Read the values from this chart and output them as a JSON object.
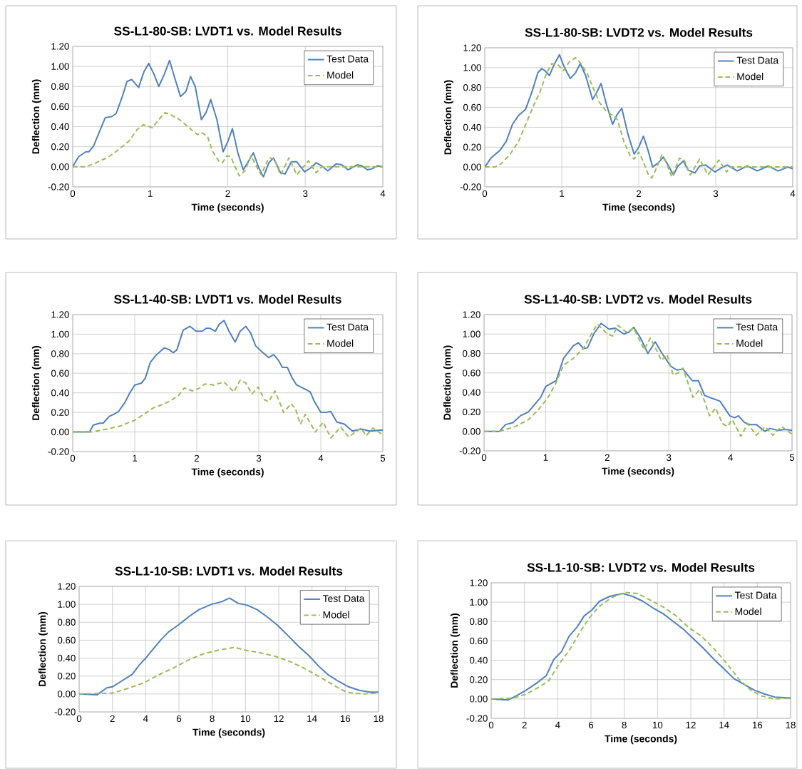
{
  "chart_data": [
    {
      "type": "line",
      "title": "SS-L1-80-SB:  LVDT1 vs. Model Results",
      "xlabel": "Time (seconds)",
      "ylabel": "Deflection (mm)",
      "xlim": [
        0,
        4
      ],
      "ylim": [
        -0.2,
        1.2
      ],
      "xticks": [
        0,
        1,
        2,
        3,
        4
      ],
      "yticks": [
        {
          "value": -0.2,
          "label": "-0.20"
        },
        {
          "value": 0,
          "label": "0.00"
        },
        {
          "value": 0.2,
          "label": "0.20"
        },
        {
          "value": 0.4,
          "label": "0.40"
        },
        {
          "value": 0.6,
          "label": "0.60"
        },
        {
          "value": 0.8,
          "label": "0.80"
        },
        {
          "value": 1.0,
          "label": "1.00"
        },
        {
          "value": 1.2,
          "label": "1.20"
        }
      ],
      "grid": true,
      "legend": "top right",
      "series": [
        {
          "name": "Test Data",
          "color": "#4f81bd",
          "line_style": "solid",
          "x": [
            0,
            0.075,
            0.17,
            0.21,
            0.27,
            0.34,
            0.42,
            0.5,
            0.56,
            0.64,
            0.7,
            0.76,
            0.85,
            0.92,
            0.98,
            1.05,
            1.11,
            1.18,
            1.25,
            1.31,
            1.39,
            1.46,
            1.52,
            1.58,
            1.66,
            1.72,
            1.78,
            1.86,
            1.94,
            2.0,
            2.06,
            2.13,
            2.2,
            2.27,
            2.33,
            2.4,
            2.46,
            2.53,
            2.59,
            2.68,
            2.74,
            2.82,
            2.89,
            2.99,
            3.07,
            3.14,
            3.21,
            3.29,
            3.4,
            3.47,
            3.55,
            3.67,
            3.73,
            3.8,
            3.86,
            3.93,
            4.0
          ],
          "values": [
            0,
            0.1,
            0.15,
            0.15,
            0.21,
            0.34,
            0.49,
            0.5,
            0.53,
            0.7,
            0.85,
            0.87,
            0.79,
            0.95,
            1.03,
            0.92,
            0.8,
            0.92,
            1.06,
            0.9,
            0.7,
            0.75,
            0.9,
            0.8,
            0.47,
            0.54,
            0.67,
            0.47,
            0.15,
            0.25,
            0.38,
            0.14,
            -0.03,
            0.06,
            0.14,
            -0.01,
            -0.1,
            0.04,
            0.09,
            -0.06,
            -0.07,
            0.05,
            0.05,
            -0.05,
            -0.01,
            0.04,
            0.01,
            -0.04,
            0.03,
            0.02,
            -0.03,
            0.02,
            0.01,
            -0.03,
            -0.02,
            0.01,
            0
          ]
        },
        {
          "name": "Model",
          "color": "#9bbb59",
          "line_style": "dashed",
          "x": [
            0,
            0.17,
            0.3,
            0.44,
            0.54,
            0.67,
            0.73,
            0.83,
            0.91,
            1.03,
            1.11,
            1.19,
            1.26,
            1.36,
            1.44,
            1.53,
            1.61,
            1.67,
            1.74,
            1.8,
            1.89,
            1.93,
            1.99,
            2.04,
            2.1,
            2.15,
            2.22,
            2.3,
            2.38,
            2.43,
            2.53,
            2.6,
            2.68,
            2.79,
            2.89,
            3.04,
            3.14,
            3.21,
            4.0
          ],
          "values": [
            0,
            0,
            0.04,
            0.09,
            0.14,
            0.22,
            0.26,
            0.37,
            0.42,
            0.39,
            0.47,
            0.54,
            0.52,
            0.48,
            0.43,
            0.37,
            0.32,
            0.34,
            0.3,
            0.16,
            0.05,
            0.04,
            0.11,
            0.1,
            -0.01,
            -0.09,
            -0.04,
            0.11,
            -0.01,
            -0.08,
            0.09,
            0.08,
            -0.08,
            0.09,
            -0.08,
            0.06,
            -0.06,
            0,
            0
          ]
        }
      ]
    },
    {
      "type": "line",
      "title": "SS-L1-80-SB:  LVDT2 vs. Model Results",
      "xlabel": "Time (seconds)",
      "ylabel": "Deflection (mm)",
      "xlim": [
        0,
        4
      ],
      "ylim": [
        -0.2,
        1.2
      ],
      "xticks": [
        0,
        1,
        2,
        3,
        4
      ],
      "yticks": [
        {
          "value": -0.2,
          "label": "-0.20"
        },
        {
          "value": 0,
          "label": "0.00"
        },
        {
          "value": 0.2,
          "label": "0.20"
        },
        {
          "value": 0.4,
          "label": "0.40"
        },
        {
          "value": 0.6,
          "label": "0.60"
        },
        {
          "value": 0.8,
          "label": "0.80"
        },
        {
          "value": 1.0,
          "label": "1.00"
        },
        {
          "value": 1.2,
          "label": "1.20"
        }
      ],
      "grid": true,
      "legend": "top right",
      "series": [
        {
          "name": "Test Data",
          "color": "#4f81bd",
          "line_style": "solid",
          "x": [
            0,
            0.08,
            0.2,
            0.28,
            0.36,
            0.44,
            0.53,
            0.61,
            0.69,
            0.74,
            0.78,
            0.84,
            0.9,
            0.97,
            1.03,
            1.11,
            1.18,
            1.24,
            1.31,
            1.4,
            1.46,
            1.51,
            1.58,
            1.66,
            1.72,
            1.78,
            1.86,
            1.94,
            2.0,
            2.06,
            2.12,
            2.18,
            2.25,
            2.32,
            2.38,
            2.45,
            2.51,
            2.58,
            2.64,
            2.73,
            2.79,
            2.87,
            2.92,
            2.99,
            3.07,
            3.15,
            3.28,
            3.41,
            3.54,
            3.68,
            3.81,
            3.94,
            4.0
          ],
          "values": [
            0,
            0.09,
            0.17,
            0.26,
            0.43,
            0.52,
            0.58,
            0.75,
            0.95,
            0.99,
            0.97,
            0.92,
            1.03,
            1.13,
            1.01,
            0.89,
            0.95,
            1.04,
            0.92,
            0.68,
            0.76,
            0.84,
            0.63,
            0.43,
            0.53,
            0.59,
            0.33,
            0.13,
            0.2,
            0.31,
            0.17,
            0,
            0.04,
            0.1,
            0.02,
            -0.08,
            0.01,
            0.06,
            -0.03,
            -0.06,
            0.01,
            0.02,
            -0.01,
            -0.05,
            -0.01,
            0.02,
            -0.04,
            0.01,
            -0.04,
            0.01,
            -0.04,
            0,
            -0.02
          ]
        },
        {
          "name": "Model",
          "color": "#9bbb59",
          "line_style": "dashed",
          "x": [
            0,
            0.13,
            0.21,
            0.33,
            0.44,
            0.56,
            0.64,
            0.72,
            0.8,
            0.87,
            0.95,
            1.02,
            1.1,
            1.18,
            1.25,
            1.33,
            1.41,
            1.49,
            1.58,
            1.66,
            1.72,
            1.81,
            1.89,
            1.94,
            2.0,
            2.05,
            2.12,
            2.17,
            2.23,
            2.3,
            2.36,
            2.43,
            2.53,
            2.59,
            2.67,
            2.79,
            2.9,
            3.04,
            3.14,
            3.19,
            4.0
          ],
          "values": [
            0,
            0,
            0.03,
            0.13,
            0.26,
            0.48,
            0.63,
            0.76,
            0.94,
            1.04,
            1.03,
            0.97,
            1.06,
            1.1,
            1.04,
            0.94,
            0.79,
            0.65,
            0.56,
            0.52,
            0.48,
            0.25,
            0.11,
            0.08,
            0.15,
            0.07,
            -0.07,
            -0.11,
            -0.01,
            0.12,
            0.04,
            -0.1,
            0.09,
            0.07,
            -0.08,
            0.08,
            -0.08,
            0.07,
            -0.05,
            0,
            0
          ]
        }
      ]
    },
    {
      "type": "line",
      "title": "SS-L1-40-SB:  LVDT1 vs. Model Results",
      "xlabel": "Time (seconds)",
      "ylabel": "Deflection (mm)",
      "xlim": [
        0,
        5
      ],
      "ylim": [
        -0.2,
        1.2
      ],
      "xticks": [
        0,
        1,
        2,
        3,
        4,
        5
      ],
      "yticks": [
        {
          "value": -0.2,
          "label": "-0.20"
        },
        {
          "value": 0,
          "label": "0.00"
        },
        {
          "value": 0.2,
          "label": "0.20"
        },
        {
          "value": 0.4,
          "label": "0.40"
        },
        {
          "value": 0.6,
          "label": "0.60"
        },
        {
          "value": 0.8,
          "label": "0.80"
        },
        {
          "value": 1.0,
          "label": "1.00"
        },
        {
          "value": 1.2,
          "label": "1.20"
        }
      ],
      "grid": true,
      "legend": "top right",
      "series": [
        {
          "name": "Test Data",
          "color": "#4f81bd",
          "line_style": "solid",
          "x": [
            0,
            0.27,
            0.33,
            0.43,
            0.49,
            0.59,
            0.66,
            0.74,
            0.84,
            0.92,
            1.0,
            1.11,
            1.17,
            1.25,
            1.35,
            1.48,
            1.56,
            1.62,
            1.68,
            1.78,
            1.89,
            1.99,
            2.09,
            2.15,
            2.21,
            2.3,
            2.36,
            2.44,
            2.52,
            2.62,
            2.7,
            2.79,
            2.87,
            2.95,
            3.05,
            3.16,
            3.24,
            3.32,
            3.38,
            3.46,
            3.54,
            3.61,
            3.71,
            3.83,
            3.89,
            4.0,
            4.08,
            4.16,
            4.26,
            4.38,
            4.51,
            4.65,
            4.79,
            5.0
          ],
          "values": [
            0,
            0,
            0.07,
            0.09,
            0.09,
            0.16,
            0.18,
            0.21,
            0.3,
            0.4,
            0.48,
            0.5,
            0.55,
            0.71,
            0.79,
            0.86,
            0.84,
            0.81,
            0.84,
            1.04,
            1.08,
            1.03,
            1.03,
            1.06,
            1.06,
            1.03,
            1.1,
            1.14,
            1.03,
            0.92,
            1.03,
            1.08,
            1.01,
            0.88,
            0.82,
            0.76,
            0.79,
            0.73,
            0.66,
            0.66,
            0.55,
            0.48,
            0.45,
            0.41,
            0.32,
            0.2,
            0.2,
            0.21,
            0.1,
            0.08,
            0.01,
            0.03,
            0.01,
            0.02
          ]
        },
        {
          "name": "Model",
          "color": "#9bbb59",
          "line_style": "dashed",
          "x": [
            0,
            0.31,
            0.55,
            0.76,
            1.0,
            1.19,
            1.31,
            1.45,
            1.58,
            1.7,
            1.8,
            1.93,
            2.05,
            2.13,
            2.27,
            2.44,
            2.52,
            2.6,
            2.7,
            2.79,
            2.89,
            2.99,
            3.09,
            3.16,
            3.26,
            3.32,
            3.4,
            3.52,
            3.59,
            3.67,
            3.75,
            3.91,
            4.04,
            4.16,
            4.32,
            4.45,
            4.65,
            4.73,
            4.84,
            5.0
          ],
          "values": [
            0,
            0,
            0.03,
            0.06,
            0.12,
            0.2,
            0.25,
            0.28,
            0.32,
            0.37,
            0.45,
            0.42,
            0.45,
            0.49,
            0.48,
            0.51,
            0.46,
            0.41,
            0.53,
            0.5,
            0.39,
            0.46,
            0.33,
            0.31,
            0.42,
            0.33,
            0.2,
            0.29,
            0.24,
            0.08,
            0.18,
            0,
            0.1,
            -0.06,
            0.05,
            -0.05,
            0.04,
            -0.04,
            0.04,
            -0.03
          ]
        }
      ]
    },
    {
      "type": "line",
      "title": "SS-L1-40-SB:  LVDT2 vs. Model Results",
      "xlabel": "Time (seconds)",
      "ylabel": "Deflection (mm)",
      "xlim": [
        0,
        5
      ],
      "ylim": [
        -0.2,
        1.2
      ],
      "xticks": [
        0,
        1,
        2,
        3,
        4,
        5
      ],
      "yticks": [
        {
          "value": -0.2,
          "label": "-0.20"
        },
        {
          "value": 0,
          "label": "0.00"
        },
        {
          "value": 0.2,
          "label": "0.20"
        },
        {
          "value": 0.4,
          "label": "0.40"
        },
        {
          "value": 0.6,
          "label": "0.60"
        },
        {
          "value": 0.8,
          "label": "0.80"
        },
        {
          "value": 1.0,
          "label": "1.00"
        },
        {
          "value": 1.2,
          "label": "1.20"
        }
      ],
      "grid": true,
      "legend": "top right",
      "series": [
        {
          "name": "Test Data",
          "color": "#4f81bd",
          "line_style": "solid",
          "x": [
            0,
            0.25,
            0.35,
            0.47,
            0.59,
            0.72,
            0.84,
            0.92,
            1.0,
            1.08,
            1.17,
            1.29,
            1.45,
            1.53,
            1.62,
            1.68,
            1.78,
            1.9,
            2.03,
            2.13,
            2.27,
            2.35,
            2.43,
            2.54,
            2.66,
            2.78,
            2.88,
            3.03,
            3.13,
            3.23,
            3.38,
            3.48,
            3.58,
            3.7,
            3.83,
            3.99,
            4.07,
            4.13,
            4.23,
            4.32,
            4.42,
            4.56,
            4.64,
            4.77,
            4.89,
            5.0
          ],
          "values": [
            0,
            0,
            0.07,
            0.09,
            0.16,
            0.2,
            0.29,
            0.35,
            0.46,
            0.49,
            0.52,
            0.75,
            0.88,
            0.91,
            0.85,
            0.86,
            1.0,
            1.11,
            1.05,
            1.06,
            1.0,
            1.02,
            1.07,
            0.96,
            0.8,
            0.92,
            0.81,
            0.67,
            0.63,
            0.64,
            0.52,
            0.52,
            0.37,
            0.34,
            0.31,
            0.16,
            0.14,
            0.16,
            0.09,
            0.07,
            0.07,
            0,
            0.03,
            0.01,
            0.02,
            0.01
          ]
        },
        {
          "name": "Model",
          "color": "#9bbb59",
          "line_style": "dashed",
          "x": [
            0,
            0.25,
            0.51,
            0.72,
            0.88,
            1.04,
            1.17,
            1.29,
            1.45,
            1.62,
            1.76,
            1.84,
            1.94,
            2.0,
            2.09,
            2.17,
            2.31,
            2.43,
            2.52,
            2.6,
            2.7,
            2.78,
            2.88,
            2.97,
            3.07,
            3.15,
            3.23,
            3.31,
            3.39,
            3.5,
            3.58,
            3.66,
            3.76,
            3.87,
            3.95,
            4.03,
            4.17,
            4.28,
            4.42,
            4.56,
            4.69,
            4.83,
            5.0
          ],
          "values": [
            0,
            0,
            0.05,
            0.12,
            0.22,
            0.35,
            0.5,
            0.68,
            0.75,
            0.86,
            1.02,
            1.1,
            1.04,
            1.0,
            0.98,
            1.09,
            1.02,
            1.06,
            0.94,
            0.84,
            0.96,
            0.86,
            0.73,
            0.79,
            0.58,
            0.6,
            0.65,
            0.5,
            0.35,
            0.43,
            0.31,
            0.16,
            0.24,
            0.08,
            0.05,
            0.12,
            -0.05,
            0.08,
            -0.04,
            0.05,
            -0.04,
            0.05,
            -0.03
          ]
        }
      ]
    },
    {
      "type": "line",
      "title": "SS-L1-10-SB:  LVDT1 vs. Model Results",
      "xlabel": "Time (seconds)",
      "ylabel": "Deflection (mm)",
      "xlim": [
        0,
        18
      ],
      "ylim": [
        -0.2,
        1.2
      ],
      "xticks": [
        0,
        2,
        4,
        6,
        8,
        10,
        12,
        14,
        16,
        18
      ],
      "yticks": [
        {
          "value": -0.2,
          "label": "-0.20"
        },
        {
          "value": 0,
          "label": "0.00"
        },
        {
          "value": 0.2,
          "label": "0.20"
        },
        {
          "value": 0.4,
          "label": "0.40"
        },
        {
          "value": 0.6,
          "label": "0.60"
        },
        {
          "value": 0.8,
          "label": "0.80"
        },
        {
          "value": 1.0,
          "label": "1.00"
        },
        {
          "value": 1.2,
          "label": "1.20"
        }
      ],
      "grid": true,
      "legend": "top right",
      "series": [
        {
          "name": "Test Data",
          "color": "#4f81bd",
          "line_style": "solid",
          "x": [
            0,
            1.07,
            1.68,
            2.0,
            2.6,
            3.2,
            3.6,
            4.0,
            4.45,
            4.9,
            5.36,
            5.97,
            6.58,
            7.2,
            7.96,
            8.58,
            9.04,
            9.57,
            10.1,
            10.7,
            11.3,
            11.9,
            12.56,
            13.2,
            13.8,
            14.4,
            15.0,
            15.6,
            16.2,
            16.85,
            17.5,
            18
          ],
          "values": [
            0,
            -0.01,
            0.07,
            0.08,
            0.15,
            0.22,
            0.32,
            0.4,
            0.5,
            0.6,
            0.69,
            0.77,
            0.86,
            0.94,
            1.0,
            1.03,
            1.07,
            1.01,
            0.99,
            0.94,
            0.86,
            0.77,
            0.65,
            0.53,
            0.43,
            0.31,
            0.21,
            0.14,
            0.08,
            0.04,
            0.02,
            0.02
          ]
        },
        {
          "name": "Model",
          "color": "#9bbb59",
          "line_style": "dashed",
          "x": [
            0,
            2,
            2.9,
            3.83,
            4.75,
            5.67,
            6.58,
            7.5,
            8.42,
            9.34,
            9.95,
            10.87,
            11.79,
            12.7,
            13.6,
            14.55,
            15.47,
            16.08,
            17.0,
            18
          ],
          "values": [
            0,
            0.01,
            0.06,
            0.12,
            0.21,
            0.29,
            0.38,
            0.45,
            0.49,
            0.52,
            0.49,
            0.46,
            0.42,
            0.36,
            0.28,
            0.18,
            0.08,
            0.02,
            0,
            0.01
          ]
        }
      ]
    },
    {
      "type": "line",
      "title": "SS-L1-10-SB:  LVDT2 vs. Model Results",
      "xlabel": "Time (seconds)",
      "ylabel": "Deflection (mm)",
      "xlim": [
        0,
        18
      ],
      "ylim": [
        -0.2,
        1.2
      ],
      "xticks": [
        0,
        2,
        4,
        6,
        8,
        10,
        12,
        14,
        16,
        18
      ],
      "yticks": [
        {
          "value": -0.2,
          "label": "-0.20"
        },
        {
          "value": 0,
          "label": "0.00"
        },
        {
          "value": 0.2,
          "label": "0.20"
        },
        {
          "value": 0.4,
          "label": "0.40"
        },
        {
          "value": 0.6,
          "label": "0.60"
        },
        {
          "value": 0.8,
          "label": "0.80"
        },
        {
          "value": 1.0,
          "label": "1.00"
        },
        {
          "value": 1.2,
          "label": "1.20"
        }
      ],
      "grid": true,
      "legend": "top right",
      "series": [
        {
          "name": "Test Data",
          "color": "#4f81bd",
          "line_style": "solid",
          "x": [
            0,
            1.02,
            1.48,
            2.09,
            2.7,
            3.31,
            3.77,
            4.23,
            4.69,
            5.15,
            5.6,
            6.06,
            6.52,
            7.13,
            7.89,
            8.5,
            9.11,
            9.73,
            10.34,
            10.95,
            11.56,
            12.17,
            12.78,
            13.39,
            14.0,
            14.6,
            15.2,
            15.83,
            16.44,
            17.05,
            18
          ],
          "values": [
            0,
            -0.01,
            0.03,
            0.09,
            0.16,
            0.24,
            0.41,
            0.49,
            0.65,
            0.74,
            0.86,
            0.92,
            1.01,
            1.06,
            1.09,
            1.06,
            1.01,
            0.94,
            0.88,
            0.8,
            0.72,
            0.62,
            0.52,
            0.41,
            0.31,
            0.21,
            0.15,
            0.09,
            0.05,
            0.02,
            0.01
          ]
        },
        {
          "name": "Model",
          "color": "#9bbb59",
          "line_style": "dashed",
          "x": [
            0,
            1.33,
            2.09,
            2.85,
            3.47,
            4.08,
            4.69,
            5.3,
            5.91,
            6.52,
            7.28,
            8.05,
            8.81,
            9.57,
            10.34,
            11.1,
            11.86,
            12.63,
            13.39,
            14.15,
            14.91,
            15.68,
            16.29,
            17.05,
            18
          ],
          "values": [
            0,
            0.01,
            0.05,
            0.12,
            0.19,
            0.36,
            0.5,
            0.68,
            0.84,
            0.96,
            1.05,
            1.1,
            1.09,
            1.02,
            0.95,
            0.86,
            0.74,
            0.65,
            0.52,
            0.37,
            0.2,
            0.08,
            0.03,
            0,
            0.01
          ]
        }
      ]
    }
  ]
}
